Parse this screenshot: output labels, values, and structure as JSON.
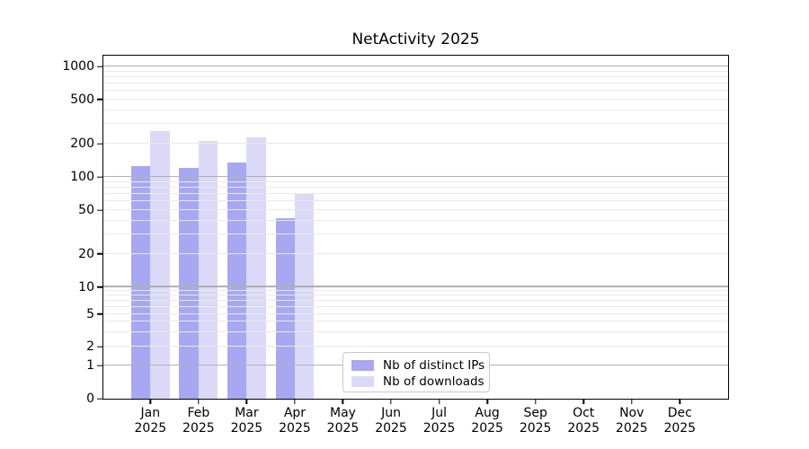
{
  "chart_data": {
    "type": "bar",
    "title": "NetActivity 2025",
    "categories": [
      "Jan",
      "Feb",
      "Mar",
      "Apr",
      "May",
      "Jun",
      "Jul",
      "Aug",
      "Sep",
      "Oct",
      "Nov",
      "Dec"
    ],
    "category_year": "2025",
    "series": [
      {
        "name": "Nb of distinct IPs",
        "color": "#a7a7f2",
        "values": [
          125,
          122,
          135,
          42,
          0,
          0,
          0,
          0,
          0,
          0,
          0,
          0
        ]
      },
      {
        "name": "Nb of downloads",
        "color": "#dadaf8",
        "values": [
          258,
          212,
          227,
          72,
          0,
          0,
          0,
          0,
          0,
          0,
          0,
          0
        ]
      }
    ],
    "yaxis": {
      "scale": "log-with-zero",
      "range": [
        0,
        1000
      ],
      "ticks": [
        {
          "value": 0,
          "frac": 0.0
        },
        {
          "value": 1,
          "frac": 0.0964
        },
        {
          "value": 2,
          "frac": 0.151
        },
        {
          "value": 5,
          "frac": 0.2474
        },
        {
          "value": 10,
          "frac": 0.3255
        },
        {
          "value": 20,
          "frac": 0.4219
        },
        {
          "value": 50,
          "frac": 0.5495
        },
        {
          "value": 100,
          "frac": 0.6458
        },
        {
          "value": 200,
          "frac": 0.7435
        },
        {
          "value": 500,
          "frac": 0.8724
        },
        {
          "value": 1000,
          "frac": 0.9688
        }
      ],
      "major_gridlines": [
        1,
        10,
        100,
        1000
      ],
      "minor_gridlines": [
        2,
        3,
        4,
        5,
        6,
        7,
        8,
        9,
        20,
        30,
        40,
        50,
        60,
        70,
        80,
        90,
        200,
        300,
        400,
        500,
        600,
        700,
        800,
        900
      ]
    },
    "legend": {
      "position": "lower-center"
    },
    "layout": {
      "first_center_frac": 0.0753,
      "center_step_frac": 0.077038,
      "bar_width_frac": 0.030846
    },
    "colors": {
      "major_grid": "#b0b0b0",
      "minor_grid": "#e9e9e9",
      "axis": "#000000",
      "background": "#ffffff"
    }
  }
}
